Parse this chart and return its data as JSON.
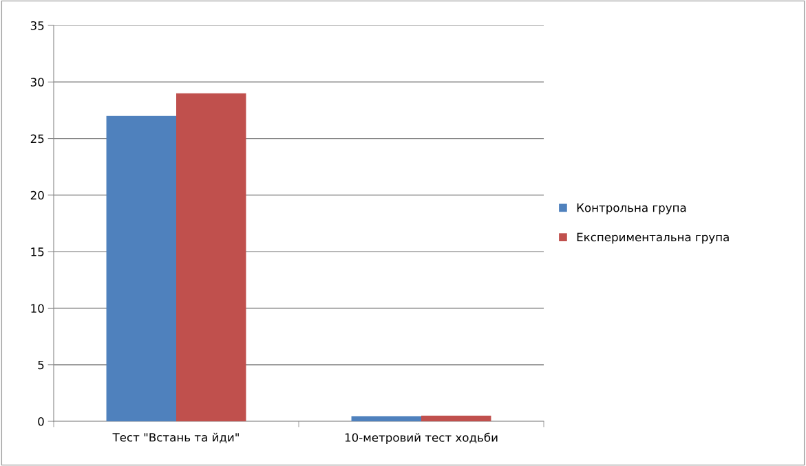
{
  "chart_data": {
    "type": "bar",
    "categories": [
      "Тест \"Встань та йди\"",
      "10-метровий тест ходьби"
    ],
    "series": [
      {
        "name": "Контрольна група",
        "color": "#4f81bd",
        "values": [
          27,
          0.45
        ]
      },
      {
        "name": "Експериментальна група",
        "color": "#c0504d",
        "values": [
          29,
          0.5
        ]
      }
    ],
    "ylim": [
      0,
      35
    ],
    "yticks": [
      0,
      5,
      10,
      15,
      20,
      25,
      30,
      35
    ],
    "grid": "y",
    "legend": "right"
  }
}
